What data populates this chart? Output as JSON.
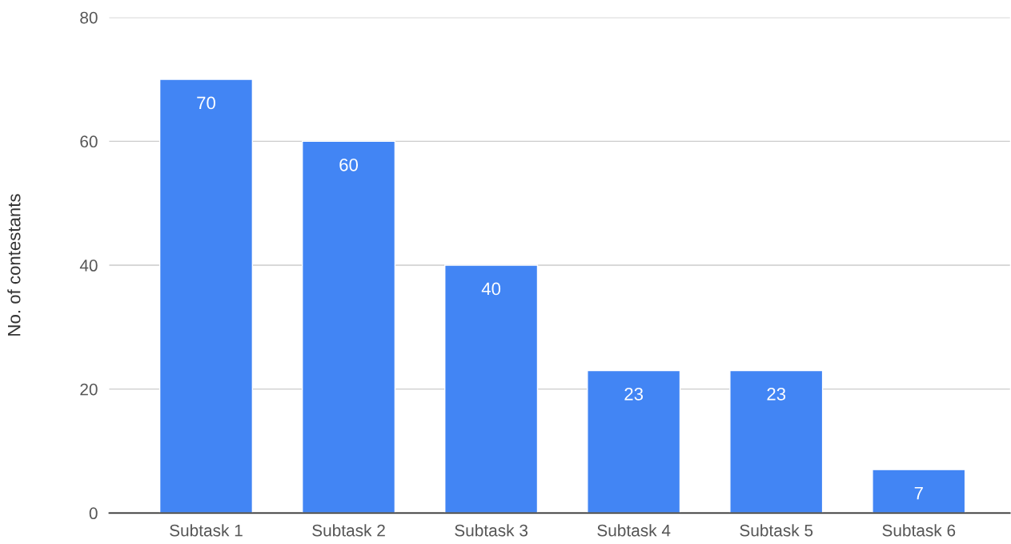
{
  "chart_data": {
    "type": "bar",
    "ylabel": "No. of contestants",
    "categories": [
      "Subtask 1",
      "Subtask 2",
      "Subtask 3",
      "Subtask 4",
      "Subtask 5",
      "Subtask 6"
    ],
    "values": [
      70,
      60,
      40,
      23,
      23,
      7
    ],
    "color": "#4285f4",
    "ylim": [
      0,
      80
    ],
    "yticks": [
      0,
      20,
      40,
      60,
      80
    ],
    "grid": "y",
    "data_labels": true,
    "legend": false
  }
}
